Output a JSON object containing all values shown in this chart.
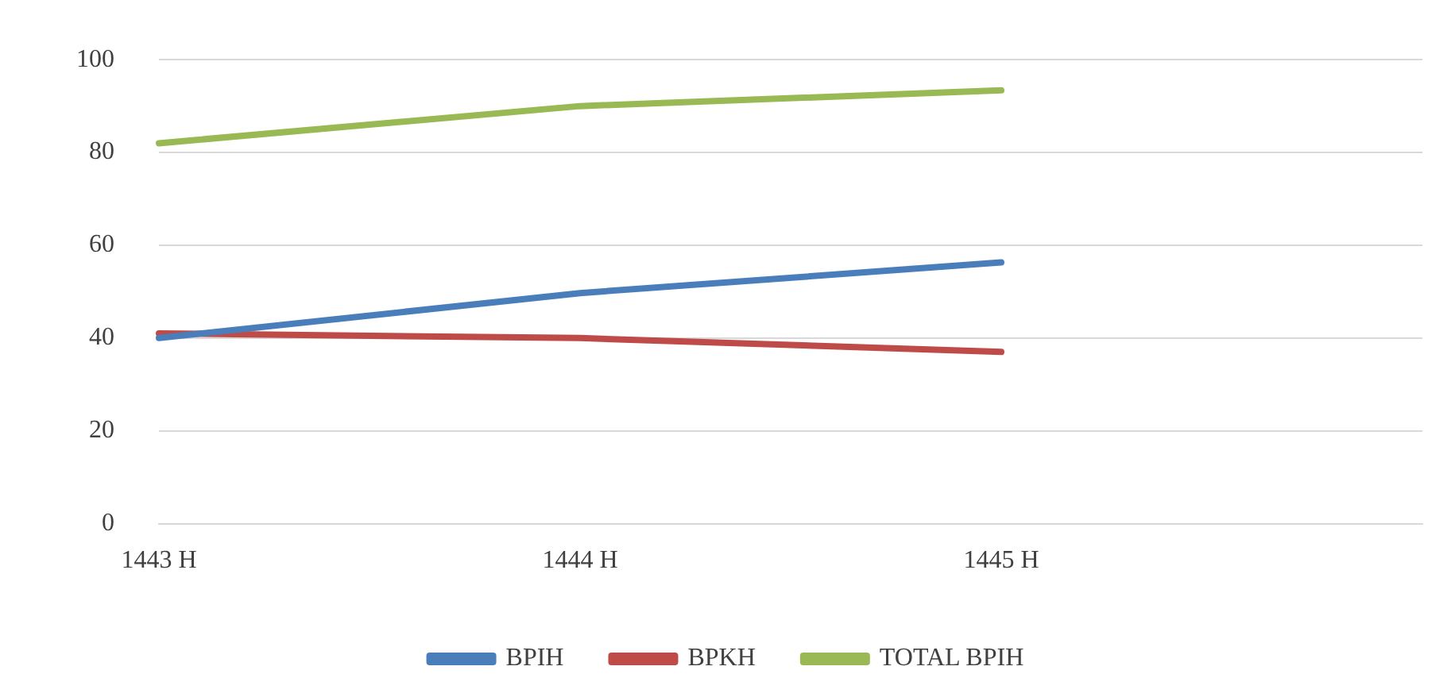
{
  "chart_data": {
    "type": "line",
    "categories": [
      "1443 H",
      "1444 H",
      "1445 H",
      null
    ],
    "series": [
      {
        "name": "BPIH",
        "color": "#4a7ebb",
        "values": [
          40,
          49.7,
          56.3,
          null
        ]
      },
      {
        "name": "BPKH",
        "color": "#be4b48",
        "values": [
          41,
          40,
          37,
          null
        ]
      },
      {
        "name": "TOTAL BPIH",
        "color": "#98b954",
        "values": [
          82,
          90,
          93.4,
          null
        ]
      }
    ],
    "ylim": [
      0,
      100
    ],
    "yticks": [
      0,
      20,
      40,
      60,
      80,
      100
    ],
    "grid": "y",
    "legend": "bottom",
    "marker": "none",
    "line_style": "solid"
  }
}
